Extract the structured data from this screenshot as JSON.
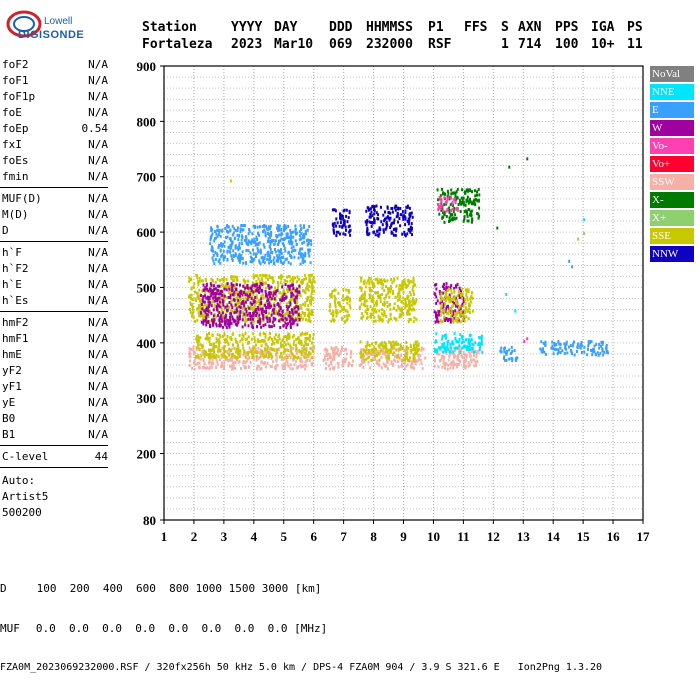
{
  "logo": {
    "line1": "Lowell",
    "line2": "DIGISONDE"
  },
  "header": {
    "labels": [
      "Station",
      "YYYY",
      "DAY",
      "DDD",
      "HHMMSS",
      "P1",
      "FFS",
      "S",
      "AXN",
      "PPS",
      "IGA",
      "PS"
    ],
    "values": [
      "Fortaleza",
      "2023",
      "Mar10",
      "069",
      "232000",
      "RSF",
      "",
      "1",
      "714",
      "100",
      "10+",
      "11"
    ]
  },
  "params": {
    "group1": [
      {
        "name": "foF2",
        "value": "N/A"
      },
      {
        "name": "foF1",
        "value": "N/A"
      },
      {
        "name": "foF1p",
        "value": "N/A"
      },
      {
        "name": "foE",
        "value": "N/A"
      },
      {
        "name": "foEp",
        "value": "0.54"
      },
      {
        "name": "fxI",
        "value": "N/A"
      },
      {
        "name": "foEs",
        "value": "N/A"
      },
      {
        "name": "fmin",
        "value": "N/A"
      }
    ],
    "group2": [
      {
        "name": "MUF(D)",
        "value": "N/A"
      },
      {
        "name": "M(D)",
        "value": "N/A"
      },
      {
        "name": "D",
        "value": "N/A"
      }
    ],
    "group3": [
      {
        "name": "h`F",
        "value": "N/A"
      },
      {
        "name": "h`F2",
        "value": "N/A"
      },
      {
        "name": "h`E",
        "value": "N/A"
      },
      {
        "name": "h`Es",
        "value": "N/A"
      }
    ],
    "group4": [
      {
        "name": "hmF2",
        "value": "N/A"
      },
      {
        "name": "hmF1",
        "value": "N/A"
      },
      {
        "name": "hmE",
        "value": "N/A"
      },
      {
        "name": "yF2",
        "value": "N/A"
      },
      {
        "name": "yF1",
        "value": "N/A"
      },
      {
        "name": "yE",
        "value": "N/A"
      },
      {
        "name": "B0",
        "value": "N/A"
      },
      {
        "name": "B1",
        "value": "N/A"
      }
    ],
    "clevel": {
      "name": "C-level",
      "value": "44"
    },
    "auto": [
      "Auto:",
      "Artist5",
      "500200"
    ]
  },
  "legend": [
    {
      "label": "NoVal",
      "color": "#808080"
    },
    {
      "label": "NNE",
      "color": "#00e5ff"
    },
    {
      "label": "E",
      "color": "#3aa0ff"
    },
    {
      "label": "W",
      "color": "#a000a0"
    },
    {
      "label": "Vo-",
      "color": "#ff40b0"
    },
    {
      "label": "Vo+",
      "color": "#ff0030"
    },
    {
      "label": "SSW",
      "color": "#f6b0a8"
    },
    {
      "label": "X-",
      "color": "#007a00"
    },
    {
      "label": "X+",
      "color": "#8ed070"
    },
    {
      "label": "SSE",
      "color": "#c8c800"
    },
    {
      "label": "NNW",
      "color": "#1000c0"
    }
  ],
  "footer": {
    "row1_label": "D",
    "row1_values": "100  200  400  600  800 1000 1500 3000 [km]",
    "row2_label": "MUF",
    "row2_values": "0.0  0.0  0.0  0.0  0.0  0.0  0.0  0.0 [MHz]",
    "row3": "FZA0M_2023069232000.RSF / 320fx256h 50 kHz 5.0 km / DPS-4 FZA0M 904 / 3.9 S 321.6 E   Ion2Png 1.3.20"
  },
  "chart_data": {
    "type": "scatter",
    "title": "",
    "xlabel": "",
    "ylabel": "",
    "xlim": [
      1,
      17
    ],
    "ylim": [
      80,
      900
    ],
    "x_ticks": [
      1,
      2,
      3,
      4,
      5,
      6,
      7,
      8,
      9,
      10,
      11,
      12,
      13,
      14,
      15,
      16,
      17
    ],
    "y_ticks": [
      80,
      200,
      300,
      400,
      500,
      600,
      700,
      800,
      900
    ],
    "grid": true,
    "legend_position": "right",
    "clusters": [
      {
        "series": "E",
        "x": [
          2.5,
          5.9
        ],
        "y": [
          545,
          615
        ]
      },
      {
        "series": "NNW",
        "x": [
          6.6,
          7.2
        ],
        "y": [
          595,
          645
        ]
      },
      {
        "series": "NNW",
        "x": [
          7.7,
          9.3
        ],
        "y": [
          595,
          650
        ]
      },
      {
        "series": "X-",
        "x": [
          10.1,
          11.5
        ],
        "y": [
          620,
          680
        ]
      },
      {
        "series": "Vo-",
        "x": [
          10.1,
          10.8
        ],
        "y": [
          640,
          665
        ]
      },
      {
        "series": "SSE",
        "x": [
          1.8,
          6.0
        ],
        "y": [
          440,
          525
        ]
      },
      {
        "series": "W",
        "x": [
          2.2,
          5.5
        ],
        "y": [
          430,
          510
        ]
      },
      {
        "series": "SSE",
        "x": [
          6.5,
          7.2
        ],
        "y": [
          440,
          500
        ]
      },
      {
        "series": "SSE",
        "x": [
          7.5,
          9.4
        ],
        "y": [
          440,
          520
        ]
      },
      {
        "series": "W",
        "x": [
          10.0,
          11.0
        ],
        "y": [
          440,
          510
        ]
      },
      {
        "series": "SSE",
        "x": [
          10.2,
          11.3
        ],
        "y": [
          440,
          500
        ]
      },
      {
        "series": "SSW",
        "x": [
          1.8,
          6.0
        ],
        "y": [
          355,
          395
        ]
      },
      {
        "series": "SSE",
        "x": [
          2.0,
          6.0
        ],
        "y": [
          375,
          420
        ]
      },
      {
        "series": "SSW",
        "x": [
          6.3,
          7.3
        ],
        "y": [
          355,
          395
        ]
      },
      {
        "series": "SSW",
        "x": [
          7.5,
          9.7
        ],
        "y": [
          355,
          395
        ]
      },
      {
        "series": "SSE",
        "x": [
          7.5,
          9.5
        ],
        "y": [
          370,
          405
        ]
      },
      {
        "series": "SSW",
        "x": [
          10.0,
          11.5
        ],
        "y": [
          355,
          395
        ]
      },
      {
        "series": "NNE",
        "x": [
          10.0,
          11.6
        ],
        "y": [
          385,
          420
        ]
      },
      {
        "series": "E",
        "x": [
          12.2,
          12.8
        ],
        "y": [
          370,
          395
        ]
      },
      {
        "series": "E",
        "x": [
          13.5,
          15.8
        ],
        "y": [
          380,
          405
        ]
      }
    ],
    "points": [
      {
        "series": "X-",
        "x": [
          12.5,
          13.1
        ],
        "y": [
          720,
          735
        ]
      },
      {
        "series": "SSE",
        "x": [
          3.2
        ],
        "y": [
          695
        ]
      },
      {
        "series": "X-",
        "x": [
          12.1
        ],
        "y": [
          610
        ]
      },
      {
        "series": "NNE",
        "x": [
          12.4,
          12.7,
          15.0
        ],
        "y": [
          490,
          460,
          625
        ]
      },
      {
        "series": "E",
        "x": [
          14.5,
          14.6
        ],
        "y": [
          550,
          540
        ]
      },
      {
        "series": "Vo-",
        "x": [
          13.0,
          13.1
        ],
        "y": [
          405,
          410
        ]
      },
      {
        "series": "X+",
        "x": [
          14.8,
          15.0
        ],
        "y": [
          590,
          600
        ]
      }
    ]
  }
}
